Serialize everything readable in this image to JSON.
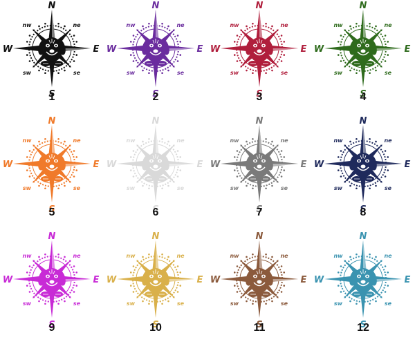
{
  "directions": {
    "n": "N",
    "e": "E",
    "s": "S",
    "w": "W",
    "nw": "nw",
    "ne": "ne",
    "sw": "sw",
    "se": "se"
  },
  "variants": [
    {
      "label": "1",
      "color": "#111111"
    },
    {
      "label": "2",
      "color": "#6a2c9e"
    },
    {
      "label": "3",
      "color": "#b01e3c"
    },
    {
      "label": "4",
      "color": "#2e6b1c"
    },
    {
      "label": "5",
      "color": "#f07a2a"
    },
    {
      "label": "6",
      "color": "#d9d9d9"
    },
    {
      "label": "7",
      "color": "#7a7a7a"
    },
    {
      "label": "8",
      "color": "#1f2a5c"
    },
    {
      "label": "9",
      "color": "#c82bd6"
    },
    {
      "label": "10",
      "color": "#d9b04a"
    },
    {
      "label": "11",
      "color": "#8b5a3c"
    },
    {
      "label": "12",
      "color": "#3a93b0"
    }
  ]
}
